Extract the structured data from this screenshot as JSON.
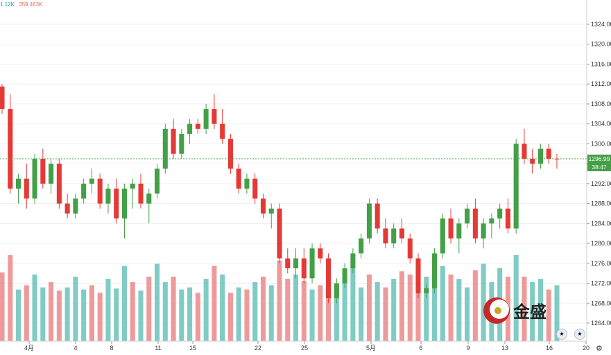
{
  "legend": {
    "price_text": "1.12K",
    "volume_text": "359.463K"
  },
  "last_price": "1296.99",
  "countdown": "38:47",
  "logo_text": "金盛",
  "colors": {
    "up": "#43a047",
    "down": "#e53935",
    "vol_up": "#80cbc4",
    "vol_down": "#ef9a9a",
    "last_line": "#43a047",
    "grid": "#f0f0f0"
  },
  "chart_data": {
    "type": "candlestick",
    "y_ticks": [
      1264,
      1268,
      1272,
      1276,
      1280,
      1284,
      1288,
      1292,
      1296,
      1300,
      1304,
      1308,
      1312,
      1316,
      1320,
      1324
    ],
    "y_tick_labels": [
      "1264.00",
      "1268.00",
      "1272.00",
      "1276.00",
      "1280.00",
      "1284.00",
      "1288.00",
      "1292.00",
      "1296.00",
      "1300.00",
      "1304.00",
      "1308.00",
      "1312.00",
      "1316.00",
      "1320.00",
      "1324.00"
    ],
    "ylim": [
      1260,
      1328
    ],
    "x_labels": [
      "4月",
      "4",
      "8",
      "11",
      "15",
      "22",
      "25",
      "5月",
      "6",
      "9",
      "13",
      "16",
      "20"
    ],
    "last_price": 1296.99,
    "candles": [
      [
        1311.5,
        1312,
        1306,
        1307
      ],
      [
        1307,
        1310,
        1290,
        1291
      ],
      [
        1291,
        1294,
        1288,
        1293
      ],
      [
        1293,
        1296,
        1287,
        1289
      ],
      [
        1289,
        1298,
        1288,
        1297
      ],
      [
        1297,
        1299,
        1291,
        1292
      ],
      [
        1292,
        1297,
        1290,
        1296
      ],
      [
        1296,
        1297,
        1287,
        1288
      ],
      [
        1288,
        1290,
        1285,
        1286
      ],
      [
        1286,
        1290,
        1285,
        1289
      ],
      [
        1289,
        1293,
        1288,
        1292
      ],
      [
        1292,
        1295,
        1290,
        1293
      ],
      [
        1293,
        1294,
        1287,
        1288
      ],
      [
        1288,
        1292,
        1286,
        1291
      ],
      [
        1291,
        1293,
        1284,
        1285
      ],
      [
        1285,
        1292,
        1281,
        1291
      ],
      [
        1291,
        1293,
        1287,
        1292
      ],
      [
        1292,
        1294,
        1287,
        1288
      ],
      [
        1288,
        1291,
        1284,
        1290
      ],
      [
        1290,
        1296,
        1289,
        1295
      ],
      [
        1295,
        1304,
        1294,
        1303
      ],
      [
        1303,
        1305,
        1297,
        1298
      ],
      [
        1298,
        1303,
        1297,
        1302
      ],
      [
        1302,
        1305,
        1300,
        1304
      ],
      [
        1304,
        1305,
        1302,
        1303
      ],
      [
        1303,
        1308,
        1302,
        1307
      ],
      [
        1307,
        1310,
        1303,
        1304
      ],
      [
        1304,
        1307,
        1300,
        1301
      ],
      [
        1301,
        1302,
        1294,
        1295
      ],
      [
        1295,
        1296,
        1290,
        1291
      ],
      [
        1291,
        1294,
        1290,
        1293
      ],
      [
        1293,
        1294,
        1288,
        1289
      ],
      [
        1289,
        1290,
        1285,
        1286
      ],
      [
        1286,
        1288,
        1283,
        1287
      ],
      [
        1287,
        1288,
        1276,
        1277
      ],
      [
        1277,
        1279,
        1274,
        1275
      ],
      [
        1275,
        1279,
        1273,
        1277
      ],
      [
        1277,
        1279,
        1272,
        1273
      ],
      [
        1273,
        1280,
        1272,
        1279
      ],
      [
        1279,
        1280,
        1276,
        1277
      ],
      [
        1277,
        1278,
        1268,
        1269
      ],
      [
        1269,
        1273,
        1268,
        1272
      ],
      [
        1272,
        1276,
        1271,
        1275
      ],
      [
        1275,
        1279,
        1274,
        1278
      ],
      [
        1278,
        1282,
        1277,
        1281
      ],
      [
        1281,
        1289,
        1280,
        1288
      ],
      [
        1288,
        1289,
        1282,
        1283
      ],
      [
        1283,
        1285,
        1279,
        1280
      ],
      [
        1280,
        1284,
        1279,
        1283
      ],
      [
        1283,
        1285,
        1280,
        1281
      ],
      [
        1281,
        1282,
        1276,
        1277
      ],
      [
        1277,
        1278,
        1269,
        1270
      ],
      [
        1270,
        1272,
        1269,
        1271
      ],
      [
        1271,
        1279,
        1270,
        1278
      ],
      [
        1278,
        1286,
        1277,
        1285
      ],
      [
        1285,
        1287,
        1280,
        1281
      ],
      [
        1281,
        1285,
        1278,
        1284
      ],
      [
        1284,
        1288,
        1283,
        1287
      ],
      [
        1287,
        1289,
        1280,
        1281
      ],
      [
        1281,
        1285,
        1279,
        1284
      ],
      [
        1284,
        1286,
        1281,
        1285
      ],
      [
        1285,
        1288,
        1283,
        1287
      ],
      [
        1287,
        1289,
        1282,
        1283
      ],
      [
        1283,
        1301,
        1282,
        1300
      ],
      [
        1300,
        1303,
        1296,
        1297
      ],
      [
        1297,
        1299,
        1294,
        1296
      ],
      [
        1296,
        1300,
        1295,
        1299
      ],
      [
        1299,
        1300,
        1296,
        1297
      ],
      [
        1297,
        1298,
        1295,
        1296.99
      ]
    ],
    "volumes": [
      [
        64,
        "d"
      ],
      [
        80,
        "d"
      ],
      [
        48,
        "u"
      ],
      [
        52,
        "d"
      ],
      [
        62,
        "u"
      ],
      [
        50,
        "u"
      ],
      [
        55,
        "d"
      ],
      [
        47,
        "d"
      ],
      [
        50,
        "u"
      ],
      [
        60,
        "u"
      ],
      [
        48,
        "u"
      ],
      [
        52,
        "d"
      ],
      [
        45,
        "d"
      ],
      [
        58,
        "u"
      ],
      [
        49,
        "u"
      ],
      [
        70,
        "u"
      ],
      [
        55,
        "d"
      ],
      [
        47,
        "u"
      ],
      [
        60,
        "d"
      ],
      [
        72,
        "u"
      ],
      [
        55,
        "u"
      ],
      [
        60,
        "d"
      ],
      [
        48,
        "u"
      ],
      [
        50,
        "u"
      ],
      [
        45,
        "d"
      ],
      [
        58,
        "u"
      ],
      [
        70,
        "d"
      ],
      [
        62,
        "u"
      ],
      [
        45,
        "d"
      ],
      [
        50,
        "u"
      ],
      [
        48,
        "d"
      ],
      [
        55,
        "u"
      ],
      [
        60,
        "d"
      ],
      [
        52,
        "u"
      ],
      [
        75,
        "d"
      ],
      [
        58,
        "d"
      ],
      [
        62,
        "u"
      ],
      [
        56,
        "d"
      ],
      [
        48,
        "u"
      ],
      [
        52,
        "d"
      ],
      [
        60,
        "d"
      ],
      [
        50,
        "u"
      ],
      [
        55,
        "u"
      ],
      [
        68,
        "u"
      ],
      [
        50,
        "u"
      ],
      [
        62,
        "d"
      ],
      [
        55,
        "u"
      ],
      [
        50,
        "d"
      ],
      [
        58,
        "u"
      ],
      [
        65,
        "d"
      ],
      [
        62,
        "d"
      ],
      [
        72,
        "d"
      ],
      [
        60,
        "u"
      ],
      [
        55,
        "u"
      ],
      [
        70,
        "u"
      ],
      [
        62,
        "d"
      ],
      [
        58,
        "u"
      ],
      [
        50,
        "u"
      ],
      [
        66,
        "d"
      ],
      [
        72,
        "u"
      ],
      [
        55,
        "u"
      ],
      [
        68,
        "u"
      ],
      [
        60,
        "d"
      ],
      [
        80,
        "u"
      ],
      [
        60,
        "d"
      ],
      [
        55,
        "u"
      ],
      [
        58,
        "u"
      ],
      [
        48,
        "d"
      ],
      [
        52,
        "u"
      ]
    ]
  }
}
